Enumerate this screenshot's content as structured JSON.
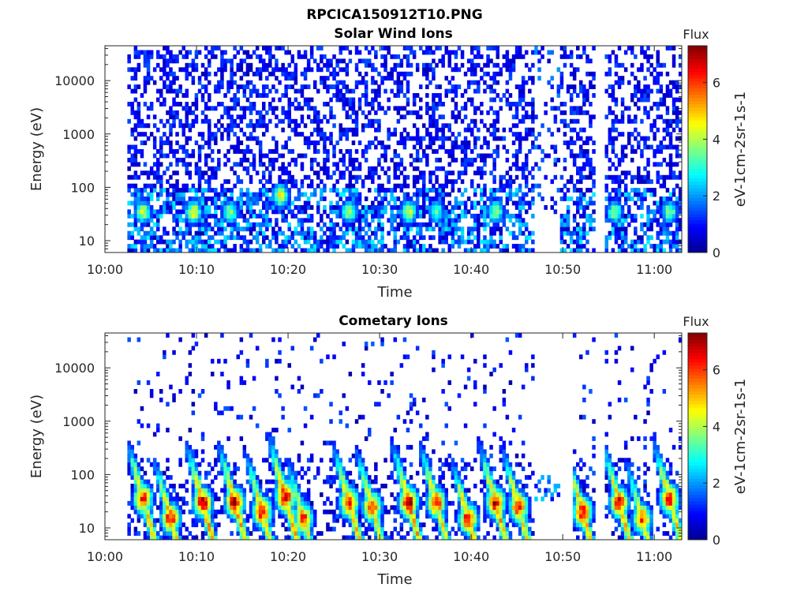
{
  "figure_title": "RPCICA150912T10.PNG",
  "colormap": [
    "#00008f",
    "#0000ff",
    "#0080ff",
    "#00ffff",
    "#80ff80",
    "#ffff00",
    "#ff8000",
    "#ff0000",
    "#800000"
  ],
  "chart_data": [
    {
      "type": "heatmap",
      "title": "Solar Wind Ions",
      "xlabel": "Time",
      "ylabel": "Energy (eV)",
      "x_ticks": [
        "10:00",
        "10:10",
        "10:20",
        "10:30",
        "10:40",
        "10:50",
        "11:00"
      ],
      "x_tick_minutes": [
        0,
        10,
        20,
        30,
        40,
        50,
        60
      ],
      "x_range_minutes": [
        0,
        63
      ],
      "y_scale": "log",
      "y_ticks": [
        "10",
        "100",
        "1000",
        "10000"
      ],
      "y_tick_values": [
        10,
        100,
        1000,
        10000
      ],
      "y_range": [
        6,
        45000
      ],
      "data_start_minute": 2.3,
      "data_gaps_minutes": [
        [
          46.7,
          49.5
        ],
        [
          53.2,
          54.5
        ]
      ],
      "colorbar": {
        "title": "Flux",
        "label": "eV-1cm-2sr-1s-1",
        "ticks": [
          "0",
          "2",
          "4",
          "6"
        ],
        "tick_values": [
          0,
          2,
          4,
          6
        ],
        "range": [
          0,
          7.3
        ]
      },
      "enhancements": [
        {
          "minute": 4.0,
          "energy": 35,
          "flux": 4.2
        },
        {
          "minute": 9.5,
          "energy": 35,
          "flux": 4.5
        },
        {
          "minute": 13.5,
          "energy": 35,
          "flux": 3.8
        },
        {
          "minute": 19.0,
          "energy": 70,
          "flux": 4.6
        },
        {
          "minute": 26.5,
          "energy": 35,
          "flux": 4.0
        },
        {
          "minute": 33.0,
          "energy": 35,
          "flux": 4.2
        },
        {
          "minute": 36.0,
          "energy": 35,
          "flux": 3.5
        },
        {
          "minute": 42.5,
          "energy": 35,
          "flux": 4.0
        },
        {
          "minute": 55.5,
          "energy": 35,
          "flux": 3.8
        },
        {
          "minute": 61.5,
          "energy": 35,
          "flux": 3.8
        }
      ]
    },
    {
      "type": "heatmap",
      "title": "Cometary Ions",
      "xlabel": "Time",
      "ylabel": "Energy (eV)",
      "x_ticks": [
        "10:00",
        "10:10",
        "10:20",
        "10:30",
        "10:40",
        "10:50",
        "11:00"
      ],
      "x_tick_minutes": [
        0,
        10,
        20,
        30,
        40,
        50,
        60
      ],
      "x_range_minutes": [
        0,
        63
      ],
      "y_scale": "log",
      "y_ticks": [
        "10",
        "100",
        "1000",
        "10000"
      ],
      "y_tick_values": [
        10,
        100,
        1000,
        10000
      ],
      "y_range": [
        6,
        45000
      ],
      "data_start_minute": 2.3,
      "data_gaps_minutes": [
        [
          46.7,
          51.0
        ],
        [
          53.2,
          54.5
        ]
      ],
      "colorbar": {
        "title": "Flux",
        "label": "eV-1cm-2sr-1s-1",
        "ticks": [
          "0",
          "2",
          "4",
          "6"
        ],
        "tick_values": [
          0,
          2,
          4,
          6
        ],
        "range": [
          0,
          7.3
        ]
      },
      "enhancements": [
        {
          "minute": 4.0,
          "energy": 35,
          "flux": 6.2
        },
        {
          "minute": 7.0,
          "energy": 15,
          "flux": 6.5
        },
        {
          "minute": 10.5,
          "energy": 30,
          "flux": 6.8
        },
        {
          "minute": 14.0,
          "energy": 30,
          "flux": 6.7
        },
        {
          "minute": 17.0,
          "energy": 20,
          "flux": 6.4
        },
        {
          "minute": 19.5,
          "energy": 40,
          "flux": 6.9
        },
        {
          "minute": 21.5,
          "energy": 15,
          "flux": 6.0
        },
        {
          "minute": 26.5,
          "energy": 30,
          "flux": 6.4
        },
        {
          "minute": 29.0,
          "energy": 25,
          "flux": 6.2
        },
        {
          "minute": 33.0,
          "energy": 30,
          "flux": 6.8
        },
        {
          "minute": 36.0,
          "energy": 30,
          "flux": 6.3
        },
        {
          "minute": 39.5,
          "energy": 15,
          "flux": 6.4
        },
        {
          "minute": 42.5,
          "energy": 30,
          "flux": 6.6
        },
        {
          "minute": 45.0,
          "energy": 25,
          "flux": 6.2
        },
        {
          "minute": 52.0,
          "energy": 20,
          "flux": 6.5
        },
        {
          "minute": 56.0,
          "energy": 30,
          "flux": 6.3
        },
        {
          "minute": 58.5,
          "energy": 15,
          "flux": 5.8
        },
        {
          "minute": 61.5,
          "energy": 35,
          "flux": 6.4
        }
      ]
    }
  ]
}
